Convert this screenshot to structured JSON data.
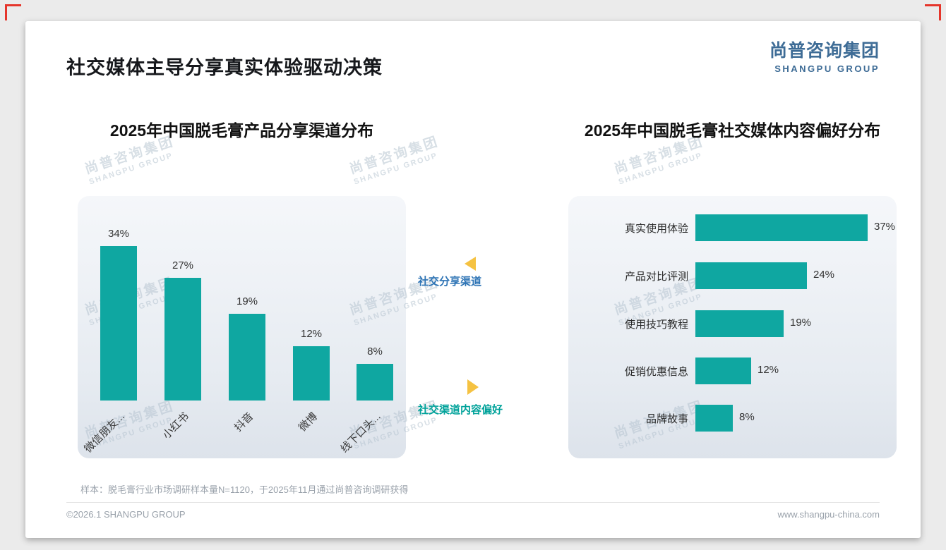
{
  "page": {
    "title": "社交媒体主导分享真实体验驱动决策",
    "logo": {
      "cn": "尚普咨询集团",
      "en": "SHANGPU GROUP"
    },
    "watermark": {
      "cn": "尚普咨询集团",
      "en": "SHANGPU GROUP"
    },
    "footer": {
      "sample_note": "样本：脱毛膏行业市场调研样本量N=1120，于2025年11月通过尚普咨询调研获得",
      "copyright": "©2026.1 SHANGPU GROUP",
      "website": "www.shangpu-china.com"
    }
  },
  "annotations": {
    "share_channel": {
      "label": "社交分享渠道",
      "color": "#2E74B5"
    },
    "content_pref": {
      "label": "社交渠道内容偏好",
      "color": "#00A29A"
    },
    "arrow_color": "#F5C242"
  },
  "colors": {
    "bar": "#0FA7A1",
    "logo_blue": "#3E6C96",
    "crop_mark_red": "#E5352B",
    "watermark": "#B7C5D1"
  },
  "chart_data": [
    {
      "type": "bar",
      "orientation": "vertical",
      "title": "2025年中国脱毛膏产品分享渠道分布",
      "categories": [
        "微信朋友...",
        "小红书",
        "抖音",
        "微博",
        "线下口头..."
      ],
      "values": [
        34,
        27,
        19,
        12,
        8
      ],
      "unit": "%",
      "ylim": [
        0,
        40
      ],
      "grid": false,
      "bar_color": "#0FA7A1"
    },
    {
      "type": "bar",
      "orientation": "horizontal",
      "title": "2025年中国脱毛膏社交媒体内容偏好分布",
      "categories": [
        "真实使用体验",
        "产品对比评测",
        "使用技巧教程",
        "促销优惠信息",
        "品牌故事"
      ],
      "values": [
        37,
        24,
        19,
        12,
        8
      ],
      "unit": "%",
      "xlim": [
        0,
        40
      ],
      "grid": false,
      "bar_color": "#0FA7A1"
    }
  ]
}
